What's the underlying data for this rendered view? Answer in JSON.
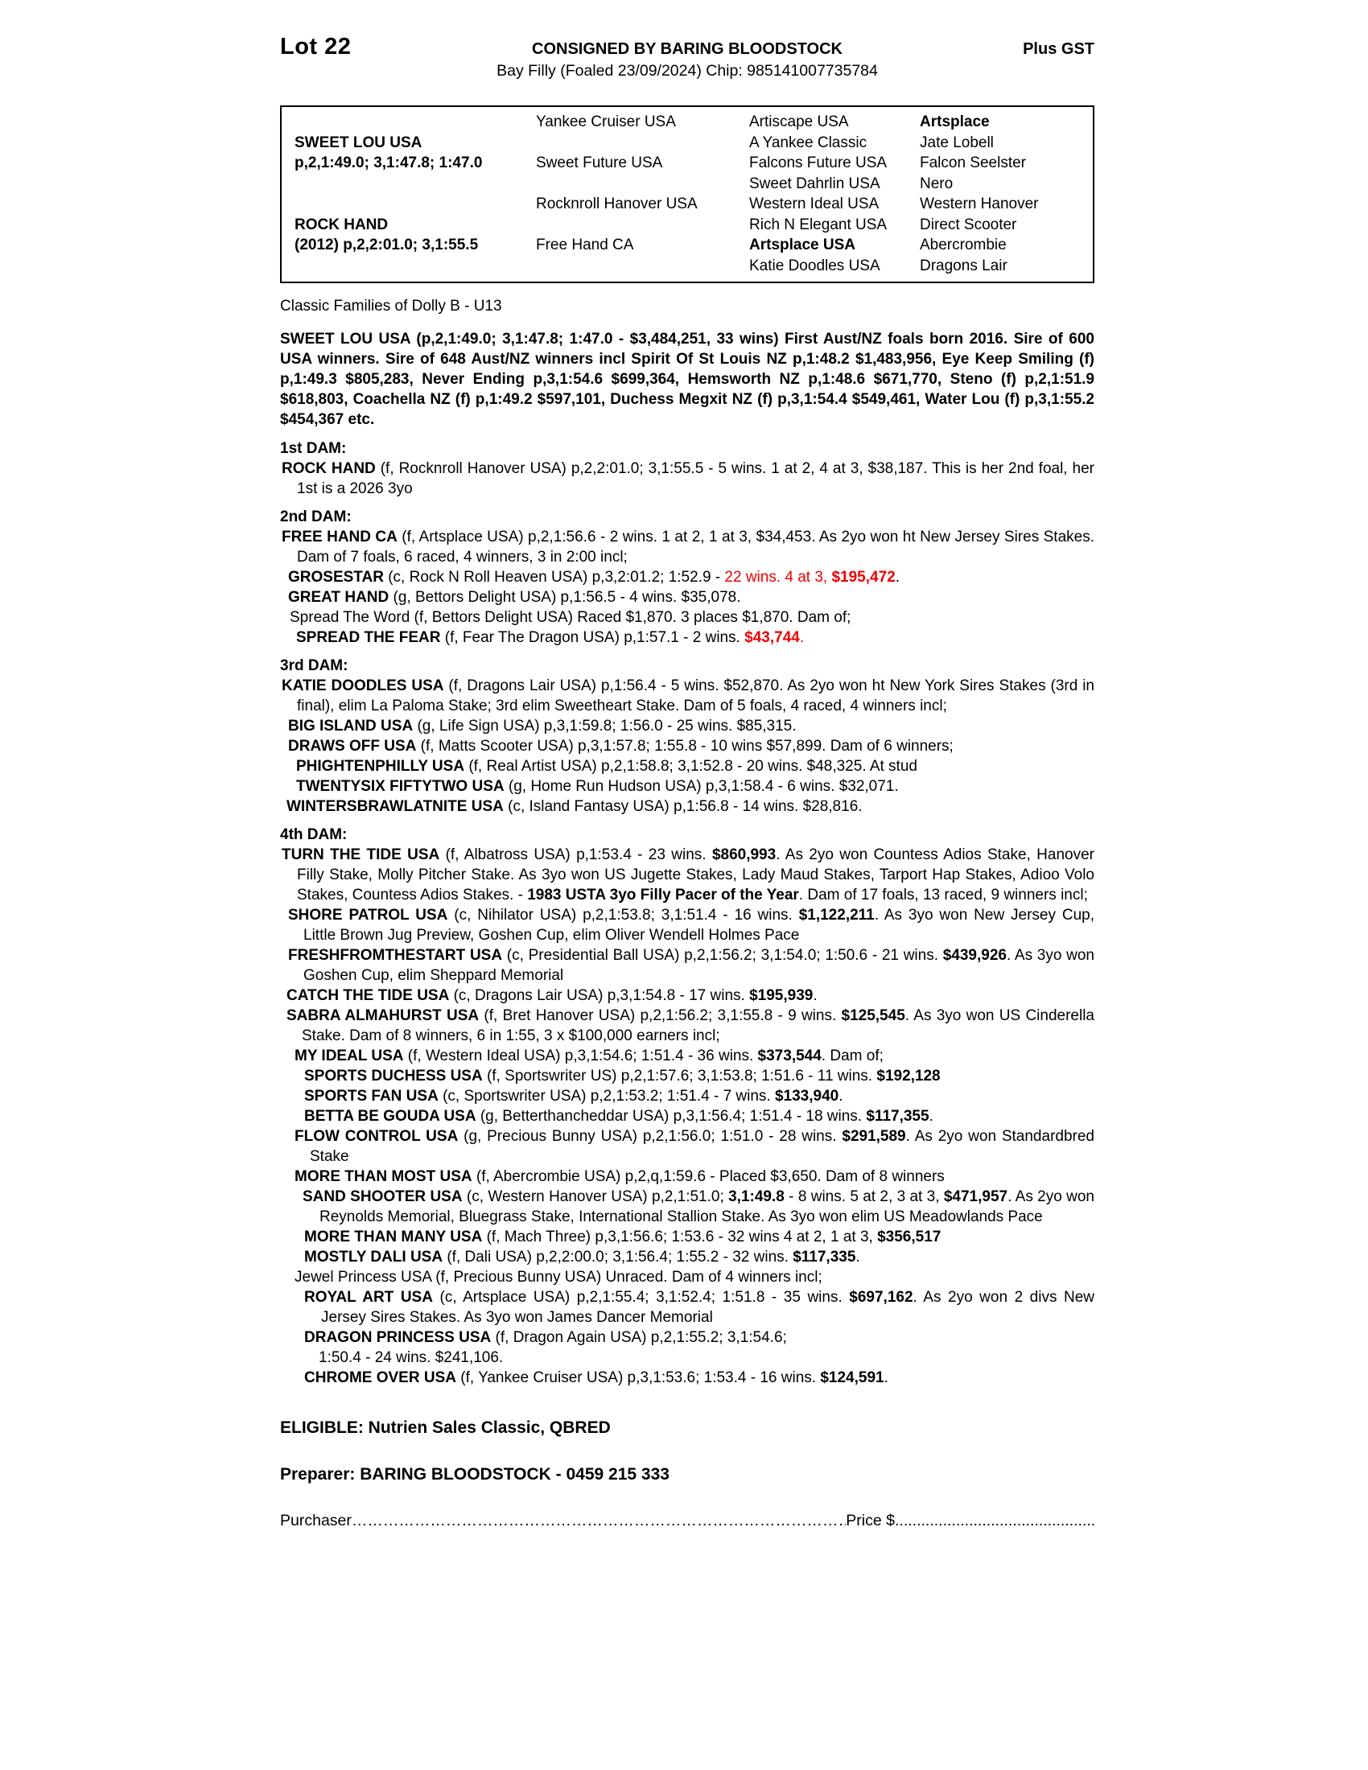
{
  "colors": {
    "red": "#ee0000",
    "text": "#000000",
    "background": "#ffffff"
  },
  "header": {
    "lot": "Lot 22",
    "consigned": "CONSIGNED BY BARING BLOODSTOCK",
    "plus_gst": "Plus GST",
    "description": "Bay Filly (Foaled 23/09/2024) Chip: 985141007735784"
  },
  "pedigree": {
    "rows": [
      [
        {
          "t": ""
        },
        {
          "t": "Yankee Cruiser USA"
        },
        {
          "t": "Artiscape USA"
        },
        {
          "t": "Artsplace",
          "b": true
        }
      ],
      [
        {
          "t": "SWEET LOU USA",
          "b": true
        },
        {
          "t": ""
        },
        {
          "t": "A Yankee Classic"
        },
        {
          "t": "Jate Lobell"
        }
      ],
      [
        {
          "t": "p,2,1:49.0; 3,1:47.8; 1:47.0",
          "b": true
        },
        {
          "t": "Sweet Future USA"
        },
        {
          "t": "Falcons Future USA"
        },
        {
          "t": "Falcon Seelster"
        }
      ],
      [
        {
          "t": ""
        },
        {
          "t": ""
        },
        {
          "t": "Sweet Dahrlin USA"
        },
        {
          "t": "Nero"
        }
      ],
      [
        {
          "t": ""
        },
        {
          "t": "Rocknroll Hanover USA"
        },
        {
          "t": "Western Ideal USA"
        },
        {
          "t": "Western Hanover"
        }
      ],
      [
        {
          "t": "ROCK HAND",
          "b": true
        },
        {
          "t": ""
        },
        {
          "t": "Rich N Elegant USA"
        },
        {
          "t": "Direct Scooter"
        }
      ],
      [
        {
          "t": "(2012) p,2,2:01.0; 3,1:55.5",
          "b": true
        },
        {
          "t": "Free Hand CA"
        },
        {
          "t": "Artsplace USA",
          "b": true
        },
        {
          "t": "Abercrombie"
        }
      ],
      [
        {
          "t": ""
        },
        {
          "t": ""
        },
        {
          "t": "Katie Doodles USA"
        },
        {
          "t": "Dragons Lair"
        }
      ]
    ]
  },
  "body": {
    "paragraphs": [
      {
        "name": "classic-families-line",
        "indent": 0,
        "hang": 0,
        "mt": 16,
        "justify": false,
        "segments": [
          {
            "t": "Classic Families of Dolly B - U13"
          }
        ]
      },
      {
        "name": "sire-summary",
        "indent": 0,
        "hang": 0,
        "mt": 16,
        "justify": true,
        "segments": [
          {
            "t": "SWEET LOU USA (p,2,1:49.0; 3,1:47.8; 1:47.0 - $3,484,251, 33 wins) First Aust/NZ foals born 2016. Sire of 600 USA winners. Sire of 648 Aust/NZ winners incl Spirit Of St Louis NZ p,1:48.2 $1,483,956, Eye Keep Smiling (f) p,1:49.3 $805,283, Never Ending p,3,1:54.6 $699,364, Hemsworth NZ p,1:48.6 $671,770, Steno (f) p,2,1:51.9 $618,803, Coachella NZ (f) p,1:49.2 $597,101, Duchess Megxit NZ (f) p,3,1:54.4 $549,461, Water Lou (f) p,3,1:55.2 $454,367 etc.",
            "b": true
          }
        ]
      },
      {
        "name": "dam-heading-1",
        "indent": 0,
        "hang": 0,
        "mt": 11,
        "justify": false,
        "segments": [
          {
            "t": "1st DAM:",
            "b": true
          }
        ]
      },
      {
        "name": "horse-rock-hand",
        "indent": 2,
        "hang": 19,
        "mt": 0,
        "justify": true,
        "segments": [
          {
            "t": "ROCK HAND",
            "b": true
          },
          {
            "t": " (f, Rocknroll Hanover USA) p,2,2:01.0; 3,1:55.5 - 5 wins. 1 at 2, 4 at 3, $38,187. This is her 2nd foal, her 1st is a 2026 3yo"
          }
        ]
      },
      {
        "name": "dam-heading-2",
        "indent": 0,
        "hang": 0,
        "mt": 10,
        "justify": false,
        "segments": [
          {
            "t": "2nd DAM:",
            "b": true
          }
        ]
      },
      {
        "name": "horse-free-hand-ca",
        "indent": 2,
        "hang": 19,
        "mt": 0,
        "justify": true,
        "segments": [
          {
            "t": "FREE HAND CA",
            "b": true
          },
          {
            "t": " (f, Artsplace USA) p,2,1:56.6 - 2 wins. 1 at 2, 1 at 3, $34,453. As 2yo won ht New Jersey Sires Stakes. Dam of 7 foals, 6 raced, 4 winners, 3 in 2:00 incl;"
          }
        ]
      },
      {
        "name": "horse-grosestar",
        "indent": 10,
        "hang": 19,
        "mt": 0,
        "justify": false,
        "segments": [
          {
            "t": "GROSESTAR",
            "b": true
          },
          {
            "t": " (c, Rock N Roll Heaven USA) p,3,2:01.2; 1:52.9 - "
          },
          {
            "t": "22 wins. 4 at 3, ",
            "r": true
          },
          {
            "t": "$195,472",
            "b": true,
            "r": true
          },
          {
            "t": "."
          }
        ]
      },
      {
        "name": "horse-great-hand",
        "indent": 10,
        "hang": 19,
        "mt": 0,
        "justify": false,
        "segments": [
          {
            "t": "GREAT HAND",
            "b": true
          },
          {
            "t": " (g, Bettors Delight USA) p,1:56.5 - 4 wins. $35,078."
          }
        ]
      },
      {
        "name": "horse-spread-the-word",
        "indent": 12,
        "hang": 19,
        "mt": 0,
        "justify": false,
        "segments": [
          {
            "t": "Spread The Word (f, Bettors Delight USA) Raced $1,870. 3 places $1,870. Dam of;"
          }
        ]
      },
      {
        "name": "horse-spread-the-fear",
        "indent": 20,
        "hang": 19,
        "mt": 0,
        "justify": false,
        "segments": [
          {
            "t": "SPREAD THE FEAR",
            "b": true
          },
          {
            "t": " (f, Fear The Dragon USA) p,1:57.1 - 2 wins. "
          },
          {
            "t": "$43,744",
            "b": true,
            "r": true
          },
          {
            "t": ".",
            "r": true
          }
        ]
      },
      {
        "name": "dam-heading-3",
        "indent": 0,
        "hang": 0,
        "mt": 10,
        "justify": false,
        "segments": [
          {
            "t": "3rd DAM:",
            "b": true
          }
        ]
      },
      {
        "name": "horse-katie-doodles",
        "indent": 2,
        "hang": 19,
        "mt": 0,
        "justify": true,
        "segments": [
          {
            "t": "KATIE DOODLES USA",
            "b": true
          },
          {
            "t": " (f, Dragons Lair USA) p,1:56.4 - 5 wins. $52,870. As 2yo won ht New York Sires Stakes (3rd in final), elim La Paloma Stake; 3rd elim Sweetheart Stake. Dam of 5 foals, 4 raced, 4 winners incl;"
          }
        ]
      },
      {
        "name": "horse-big-island",
        "indent": 10,
        "hang": 19,
        "mt": 0,
        "justify": false,
        "segments": [
          {
            "t": "BIG ISLAND USA",
            "b": true
          },
          {
            "t": " (g, Life Sign USA) p,3,1:59.8; 1:56.0 - 25 wins. $85,315."
          }
        ]
      },
      {
        "name": "horse-draws-off",
        "indent": 10,
        "hang": 19,
        "mt": 0,
        "justify": false,
        "segments": [
          {
            "t": "DRAWS OFF USA",
            "b": true
          },
          {
            "t": " (f, Matts Scooter USA) p,3,1:57.8; 1:55.8 - 10 wins $57,899. Dam of 6 winners;"
          }
        ]
      },
      {
        "name": "horse-phightenphilly",
        "indent": 20,
        "hang": 19,
        "mt": 0,
        "justify": false,
        "segments": [
          {
            "t": "PHIGHTENPHILLY USA",
            "b": true
          },
          {
            "t": " (f, Real Artist USA) p,2,1:58.8; 3,1:52.8 - 20 wins. $48,325. At stud"
          }
        ]
      },
      {
        "name": "horse-twentysix-fiftytwo",
        "indent": 20,
        "hang": 19,
        "mt": 0,
        "justify": false,
        "segments": [
          {
            "t": "TWENTYSIX FIFTYTWO USA",
            "b": true
          },
          {
            "t": " (g, Home Run Hudson USA) p,3,1:58.4 - 6 wins. $32,071."
          }
        ]
      },
      {
        "name": "horse-wintersbrawlatnite",
        "indent": 8,
        "hang": 19,
        "mt": 0,
        "justify": false,
        "segments": [
          {
            "t": "WINTERSBRAWLATNITE USA",
            "b": true
          },
          {
            "t": " (c, Island Fantasy USA) p,1:56.8 - 14 wins. $28,816."
          }
        ]
      },
      {
        "name": "dam-heading-4",
        "indent": 0,
        "hang": 0,
        "mt": 10,
        "justify": false,
        "segments": [
          {
            "t": "4th DAM:",
            "b": true
          }
        ]
      },
      {
        "name": "horse-turn-the-tide",
        "indent": 2,
        "hang": 19,
        "mt": 0,
        "justify": true,
        "segments": [
          {
            "t": "TURN THE TIDE USA",
            "b": true
          },
          {
            "t": " (f, Albatross USA) p,1:53.4 - 23 wins. "
          },
          {
            "t": "$860,993",
            "b": true
          },
          {
            "t": ". As 2yo won Countess Adios Stake, Hanover Filly Stake, Molly Pitcher Stake. As 3yo won US Jugette Stakes, Lady Maud Stakes, Tarport Hap Stakes, Adioo Volo Stakes, Countess Adios Stakes. - "
          },
          {
            "t": "1983 USTA 3yo Filly Pacer of the Year",
            "b": true
          },
          {
            "t": ". Dam of 17 foals, 13 raced, 9 winners incl;"
          }
        ]
      },
      {
        "name": "horse-shore-patrol",
        "indent": 10,
        "hang": 19,
        "mt": 0,
        "justify": true,
        "segments": [
          {
            "t": "SHORE PATROL USA",
            "b": true
          },
          {
            "t": " (c, Nihilator USA) p,2,1:53.8; 3,1:51.4 - 16 wins. "
          },
          {
            "t": "$1,122,211",
            "b": true
          },
          {
            "t": ". As 3yo won New Jersey Cup, Little Brown Jug Preview, Goshen Cup, elim Oliver Wendell Holmes Pace"
          }
        ]
      },
      {
        "name": "horse-freshfromthestart",
        "indent": 10,
        "hang": 19,
        "mt": 0,
        "justify": true,
        "segments": [
          {
            "t": "FRESHFROMTHESTART USA",
            "b": true
          },
          {
            "t": " (c, Presidential Ball USA) p,2,1:56.2; 3,1:54.0; 1:50.6 - 21 wins. "
          },
          {
            "t": "$439,926",
            "b": true
          },
          {
            "t": ". As 3yo won Goshen Cup, elim Sheppard Memorial"
          }
        ]
      },
      {
        "name": "horse-catch-the-tide",
        "indent": 8,
        "hang": 19,
        "mt": 0,
        "justify": false,
        "segments": [
          {
            "t": "CATCH THE TIDE USA",
            "b": true
          },
          {
            "t": " (c, Dragons Lair USA) p,3,1:54.8 - 17 wins. "
          },
          {
            "t": "$195,939",
            "b": true
          },
          {
            "t": "."
          }
        ]
      },
      {
        "name": "horse-sabra-almahurst",
        "indent": 8,
        "hang": 19,
        "mt": 0,
        "justify": true,
        "segments": [
          {
            "t": "SABRA ALMAHURST USA",
            "b": true
          },
          {
            "t": " (f, Bret Hanover USA) p,2,1:56.2; 3,1:55.8 - 9 wins. "
          },
          {
            "t": "$125,545",
            "b": true
          },
          {
            "t": ". As 3yo won US Cinderella Stake. Dam of 8 winners, 6 in 1:55, 3 x $100,000 earners incl;"
          }
        ]
      },
      {
        "name": "horse-my-ideal",
        "indent": 18,
        "hang": 19,
        "mt": 0,
        "justify": false,
        "segments": [
          {
            "t": "MY IDEAL USA",
            "b": true
          },
          {
            "t": " (f, Western Ideal USA) p,3,1:54.6; 1:51.4 - 36 wins. "
          },
          {
            "t": "$373,544",
            "b": true
          },
          {
            "t": ". Dam of;"
          }
        ]
      },
      {
        "name": "horse-sports-duchess",
        "indent": 30,
        "hang": 19,
        "mt": 0,
        "justify": false,
        "segments": [
          {
            "t": "SPORTS DUCHESS USA",
            "b": true
          },
          {
            "t": " (f, Sportswriter US) p,2,1:57.6; 3,1:53.8; 1:51.6 - 11 wins. "
          },
          {
            "t": "$192,128",
            "b": true
          }
        ]
      },
      {
        "name": "horse-sports-fan",
        "indent": 30,
        "hang": 19,
        "mt": 0,
        "justify": false,
        "segments": [
          {
            "t": "SPORTS FAN USA",
            "b": true
          },
          {
            "t": " (c, Sportswriter USA) p,2,1:53.2; 1:51.4 - 7 wins. "
          },
          {
            "t": "$133,940",
            "b": true
          },
          {
            "t": "."
          }
        ]
      },
      {
        "name": "horse-betta-be-gouda",
        "indent": 30,
        "hang": 19,
        "mt": 0,
        "justify": false,
        "segments": [
          {
            "t": "BETTA BE GOUDA USA",
            "b": true
          },
          {
            "t": " (g, Betterthancheddar USA) p,3,1:56.4; 1:51.4 - 18 wins. "
          },
          {
            "t": "$117,355",
            "b": true
          },
          {
            "t": "."
          }
        ]
      },
      {
        "name": "horse-flow-control",
        "indent": 18,
        "hang": 19,
        "mt": 0,
        "justify": true,
        "segments": [
          {
            "t": "FLOW CONTROL USA",
            "b": true
          },
          {
            "t": " (g, Precious Bunny USA) p,2,1:56.0; 1:51.0 - 28 wins. "
          },
          {
            "t": "$291,589",
            "b": true
          },
          {
            "t": ". As 2yo won Standardbred Stake"
          }
        ]
      },
      {
        "name": "horse-more-than-most",
        "indent": 18,
        "hang": 19,
        "mt": 0,
        "justify": false,
        "segments": [
          {
            "t": "MORE THAN MOST USA",
            "b": true
          },
          {
            "t": " (f, Abercrombie USA) p,2,q,1:59.6 - Placed $3,650. Dam of 8 winners"
          }
        ]
      },
      {
        "name": "horse-sand-shooter",
        "indent": 28,
        "hang": 21,
        "mt": 0,
        "justify": true,
        "segments": [
          {
            "t": "SAND SHOOTER USA",
            "b": true
          },
          {
            "t": " (c, Western Hanover USA) p,2,1:51.0; "
          },
          {
            "t": "3,1:49.8",
            "b": true
          },
          {
            "t": " - 8 wins. 5 at 2, 3 at 3, "
          },
          {
            "t": "$471,957",
            "b": true
          },
          {
            "t": ". As 2yo won Reynolds Memorial, Bluegrass Stake, International Stallion Stake. As 3yo won elim US Meadowlands Pace"
          }
        ]
      },
      {
        "name": "horse-more-than-many",
        "indent": 30,
        "hang": 19,
        "mt": 0,
        "justify": false,
        "segments": [
          {
            "t": "MORE THAN MANY USA",
            "b": true
          },
          {
            "t": " (f, Mach Three) p,3,1:56.6; 1:53.6 - 32 wins 4 at 2, 1 at 3, "
          },
          {
            "t": "$356,517",
            "b": true
          }
        ]
      },
      {
        "name": "horse-mostly-dali",
        "indent": 30,
        "hang": 19,
        "mt": 0,
        "justify": false,
        "segments": [
          {
            "t": "MOSTLY DALI USA",
            "b": true
          },
          {
            "t": " (f, Dali USA) p,2,2:00.0; 3,1:56.4; 1:55.2 - 32 wins. "
          },
          {
            "t": "$117,335",
            "b": true
          },
          {
            "t": "."
          }
        ]
      },
      {
        "name": "horse-jewel-princess",
        "indent": 18,
        "hang": 19,
        "mt": 0,
        "justify": false,
        "segments": [
          {
            "t": "Jewel Princess USA (f, Precious Bunny USA) Unraced. Dam of 4 winners incl;"
          }
        ]
      },
      {
        "name": "horse-royal-art",
        "indent": 30,
        "hang": 21,
        "mt": 0,
        "justify": true,
        "segments": [
          {
            "t": "ROYAL ART USA",
            "b": true
          },
          {
            "t": " (c, Artsplace USA) p,2,1:55.4; 3,1:52.4; 1:51.8 - 35 wins. "
          },
          {
            "t": "$697,162",
            "b": true
          },
          {
            "t": ". As 2yo won 2 divs New Jersey Sires Stakes. As 3yo won James Dancer Memorial"
          }
        ]
      },
      {
        "name": "horse-dragon-princess",
        "indent": 30,
        "hang": 19,
        "mt": 0,
        "justify": false,
        "segments": [
          {
            "t": "DRAGON PRINCESS USA",
            "b": true
          },
          {
            "t": " (f, Dragon Again USA) p,2,1:55.2; 3,1:54.6;"
          }
        ]
      },
      {
        "name": "horse-dragon-princess-cont",
        "indent": 48,
        "hang": 0,
        "mt": 0,
        "justify": false,
        "segments": [
          {
            "t": "1:50.4 - 24 wins. $241,106."
          }
        ]
      },
      {
        "name": "horse-chrome-over",
        "indent": 30,
        "hang": 19,
        "mt": 0,
        "justify": false,
        "segments": [
          {
            "t": "CHROME OVER USA",
            "b": true
          },
          {
            "t": " (f, Yankee Cruiser USA) p,3,1:53.6; 1:53.4 - 16 wins. "
          },
          {
            "t": "$124,591",
            "b": true
          },
          {
            "t": "."
          }
        ]
      }
    ]
  },
  "footer": {
    "eligible": "ELIGIBLE: Nutrien Sales Classic, QBRED",
    "preparer": "Preparer: BARING BLOODSTOCK - 0459 215 333",
    "purchaser_label": "Purchaser",
    "purchaser_dots": "………………………………………………………………………………………",
    "price_label": "Price $",
    "price_dots": "........................................................................"
  }
}
